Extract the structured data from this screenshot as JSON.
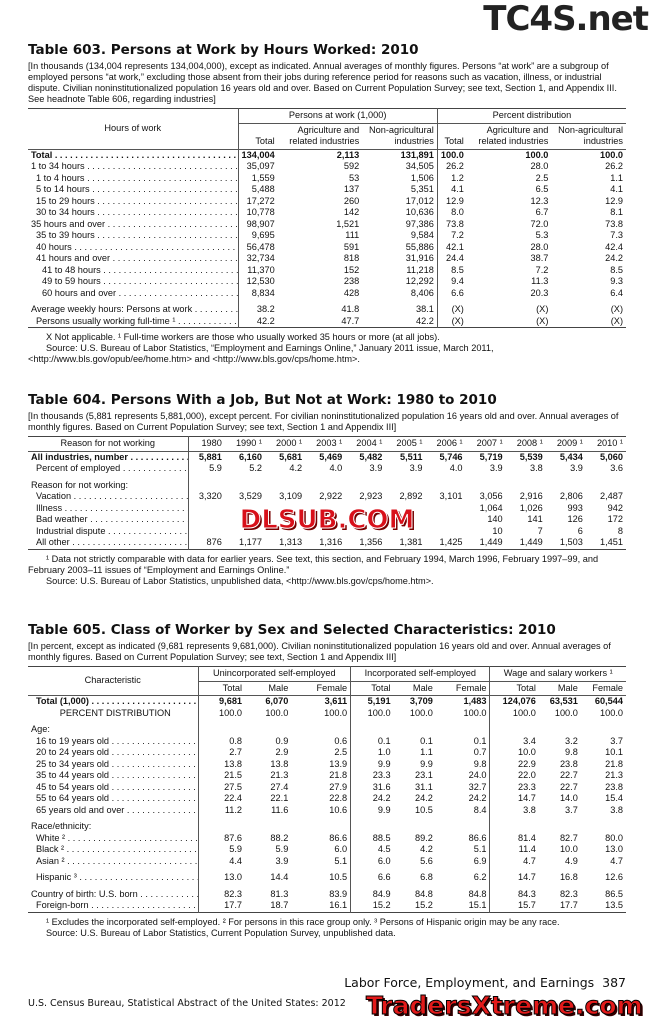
{
  "watermarks": {
    "top": "TC4S.net",
    "middle": "DLSUB.COM",
    "bottom": "TradersXtreme.com"
  },
  "t603": {
    "title": "Table 603. Persons at Work by Hours Worked: 2010",
    "headnote": "[In thousands (134,004 represents 134,004,000), except as indicated. Annual averages of monthly figures. Persons “at work” are a subgroup of employed persons “at work,” excluding those absent from their jobs during reference period for reasons such as vacation, illness, or industrial dispute. Civilian noninstitutionalized population 16 years old and over. Based on Current Population Survey; see text, Section 1, and Appendix III. See headnote Table 606, regarding industries]",
    "stub_header": "Hours of work",
    "groups": [
      "Persons at work (1,000)",
      "Percent distribution"
    ],
    "columns": [
      "Total",
      "Agriculture and related industries",
      "Non-agricultural industries",
      "Total",
      "Agriculture and related industries",
      "Non-agricultural industries"
    ],
    "rows": [
      {
        "label": "Total",
        "bold": true,
        "indent": 0,
        "values": [
          "134,004",
          "2,113",
          "131,891",
          "100.0",
          "100.0",
          "100.0"
        ]
      },
      {
        "label": "1 to 34 hours",
        "indent": 0,
        "values": [
          "35,097",
          "592",
          "34,505",
          "26.2",
          "28.0",
          "26.2"
        ]
      },
      {
        "label": "1 to 4 hours",
        "indent": 1,
        "values": [
          "1,559",
          "53",
          "1,506",
          "1.2",
          "2.5",
          "1.1"
        ]
      },
      {
        "label": "5 to 14 hours",
        "indent": 1,
        "values": [
          "5,488",
          "137",
          "5,351",
          "4.1",
          "6.5",
          "4.1"
        ]
      },
      {
        "label": "15 to 29 hours",
        "indent": 1,
        "values": [
          "17,272",
          "260",
          "17,012",
          "12.9",
          "12.3",
          "12.9"
        ]
      },
      {
        "label": "30 to 34 hours",
        "indent": 1,
        "values": [
          "10,778",
          "142",
          "10,636",
          "8.0",
          "6.7",
          "8.1"
        ]
      },
      {
        "label": "35 hours and over",
        "indent": 0,
        "values": [
          "98,907",
          "1,521",
          "97,386",
          "73.8",
          "72.0",
          "73.8"
        ]
      },
      {
        "label": "35 to 39 hours",
        "indent": 1,
        "values": [
          "9,695",
          "111",
          "9,584",
          "7.2",
          "5.3",
          "7.3"
        ]
      },
      {
        "label": "40 hours",
        "indent": 1,
        "values": [
          "56,478",
          "591",
          "55,886",
          "42.1",
          "28.0",
          "42.4"
        ]
      },
      {
        "label": "41 hours and over",
        "indent": 1,
        "values": [
          "32,734",
          "818",
          "31,916",
          "24.4",
          "38.7",
          "24.2"
        ]
      },
      {
        "label": "41 to 48 hours",
        "indent": 2,
        "values": [
          "11,370",
          "152",
          "11,218",
          "8.5",
          "7.2",
          "8.5"
        ]
      },
      {
        "label": "49 to 59 hours",
        "indent": 2,
        "values": [
          "12,530",
          "238",
          "12,292",
          "9.4",
          "11.3",
          "9.3"
        ]
      },
      {
        "label": "60 hours and over",
        "indent": 2,
        "values": [
          "8,834",
          "428",
          "8,406",
          "6.6",
          "20.3",
          "6.4"
        ]
      },
      {
        "label": "Average weekly hours: Persons at work",
        "indent": 0,
        "gap": true,
        "values": [
          "38.2",
          "41.8",
          "38.1",
          "(X)",
          "(X)",
          "(X)"
        ]
      },
      {
        "label": "Persons usually working full-time ¹",
        "indent": 1,
        "values": [
          "42.2",
          "47.7",
          "42.2",
          "(X)",
          "(X)",
          "(X)"
        ]
      }
    ],
    "notes": [
      "X Not applicable. ¹ Full-time workers are those who usually worked 35 hours or more (at all jobs).",
      "Source: U.S. Bureau of Labor Statistics, “Employment and Earnings Online,” January 2011 issue, March 2011, <http://www.bls.gov/opub/ee/home.htm> and <http://www.bls.gov/cps/home.htm>."
    ]
  },
  "t604": {
    "title": "Table 604. Persons With a Job, But Not at Work: 1980 to 2010",
    "headnote": "[In thousands (5,881 represents 5,881,000), except percent. For civilian noninstitutionalized population 16 years old and over. Annual averages of monthly figures. Based on Current Population Survey; see text, Section 1 and Appendix III]",
    "stub_header": "Reason for not working",
    "columns": [
      "1980",
      "1990 ¹",
      "2000 ¹",
      "2003 ¹",
      "2004 ¹",
      "2005 ¹",
      "2006 ¹",
      "2007 ¹",
      "2008 ¹",
      "2009 ¹",
      "2010 ¹"
    ],
    "rows": [
      {
        "label": "All industries, number",
        "bold": true,
        "indent": 0,
        "values": [
          "5,881",
          "6,160",
          "5,681",
          "5,469",
          "5,482",
          "5,511",
          "5,746",
          "5,719",
          "5,539",
          "5,434",
          "5,060"
        ]
      },
      {
        "label": "Percent of employed",
        "indent": 1,
        "values": [
          "5.9",
          "5.2",
          "4.2",
          "4.0",
          "3.9",
          "3.9",
          "4.0",
          "3.9",
          "3.8",
          "3.9",
          "3.6"
        ]
      },
      {
        "label": "Reason for not working:",
        "indent": 0,
        "gap": true,
        "nodots": true,
        "values": [
          "",
          "",
          "",
          "",
          "",
          "",
          "",
          "",
          "",
          "",
          ""
        ]
      },
      {
        "label": "Vacation",
        "indent": 1,
        "values": [
          "3,320",
          "3,529",
          "3,109",
          "2,922",
          "2,923",
          "2,892",
          "3,101",
          "3,056",
          "2,916",
          "2,806",
          "2,487"
        ]
      },
      {
        "label": "Illness",
        "indent": 1,
        "values": [
          "",
          "",
          "",
          "",
          "",
          "",
          "",
          "1,064",
          "1,026",
          "993",
          "942"
        ]
      },
      {
        "label": "Bad weather",
        "indent": 1,
        "values": [
          "",
          "",
          "",
          "",
          "",
          "",
          "",
          "140",
          "141",
          "126",
          "172"
        ]
      },
      {
        "label": "Industrial dispute",
        "indent": 1,
        "values": [
          "",
          "",
          "",
          "",
          "",
          "",
          "",
          "10",
          "7",
          "6",
          "8"
        ]
      },
      {
        "label": "All other",
        "indent": 1,
        "values": [
          "876",
          "1,177",
          "1,313",
          "1,316",
          "1,356",
          "1,381",
          "1,425",
          "1,449",
          "1,449",
          "1,503",
          "1,451"
        ]
      }
    ],
    "notes": [
      "¹ Data not strictly comparable with data for earlier years. See text, this section, and February 1994, March 1996, February 1997–99, and February 2003–11 issues of “Employment and Earnings Online.”",
      "Source: U.S. Bureau of Labor Statistics, unpublished data, <http://www.bls.gov/cps/home.htm>."
    ]
  },
  "t605": {
    "title": "Table 605. Class of Worker by Sex and Selected Characteristics: 2010",
    "headnote": "[In percent, except as indicated (9,681 represents 9,681,000). Civilian noninstitutionalized population 16 years old and over. Annual averages of monthly figures. Based on Current Population Survey; see text, Section 1 and Appendix III]",
    "stub_header": "Characteristic",
    "groups": [
      "Unincorporated self-employed",
      "Incorporated self-employed",
      "Wage and salary workers ¹"
    ],
    "columns": [
      "Total",
      "Male",
      "Female",
      "Total",
      "Male",
      "Female",
      "Total",
      "Male",
      "Female"
    ],
    "rows": [
      {
        "label": "Total (1,000)",
        "bold": true,
        "indent": 1,
        "values": [
          "9,681",
          "6,070",
          "3,611",
          "5,191",
          "3,709",
          "1,483",
          "124,076",
          "63,531",
          "60,544"
        ]
      },
      {
        "label": "PERCENT DISTRIBUTION",
        "indent": 1,
        "center": true,
        "nodots": true,
        "values": [
          "100.0",
          "100.0",
          "100.0",
          "100.0",
          "100.0",
          "100.0",
          "100.0",
          "100.0",
          "100.0"
        ]
      },
      {
        "label": "Age:",
        "indent": 0,
        "gap": true,
        "nodots": true,
        "values": [
          "",
          "",
          "",
          "",
          "",
          "",
          "",
          "",
          ""
        ]
      },
      {
        "label": "16 to 19 years old",
        "indent": 1,
        "values": [
          "0.8",
          "0.9",
          "0.6",
          "0.1",
          "0.1",
          "0.1",
          "3.4",
          "3.2",
          "3.7"
        ]
      },
      {
        "label": "20 to 24 years old",
        "indent": 1,
        "values": [
          "2.7",
          "2.9",
          "2.5",
          "1.0",
          "1.1",
          "0.7",
          "10.0",
          "9.8",
          "10.1"
        ]
      },
      {
        "label": "25 to 34 years old",
        "indent": 1,
        "values": [
          "13.8",
          "13.8",
          "13.9",
          "9.9",
          "9.9",
          "9.8",
          "22.9",
          "23.8",
          "21.8"
        ]
      },
      {
        "label": "35 to 44 years old",
        "indent": 1,
        "values": [
          "21.5",
          "21.3",
          "21.8",
          "23.3",
          "23.1",
          "24.0",
          "22.0",
          "22.7",
          "21.3"
        ]
      },
      {
        "label": "45 to 54 years old",
        "indent": 1,
        "values": [
          "27.5",
          "27.4",
          "27.9",
          "31.6",
          "31.1",
          "32.7",
          "23.3",
          "22.7",
          "23.8"
        ]
      },
      {
        "label": "55 to 64 years old",
        "indent": 1,
        "values": [
          "22.4",
          "22.1",
          "22.8",
          "24.2",
          "24.2",
          "24.2",
          "14.7",
          "14.0",
          "15.4"
        ]
      },
      {
        "label": "65 years old and over",
        "indent": 1,
        "values": [
          "11.2",
          "11.6",
          "10.6",
          "9.9",
          "10.5",
          "8.4",
          "3.8",
          "3.7",
          "3.8"
        ]
      },
      {
        "label": "Race/ethnicity:",
        "indent": 0,
        "gap": true,
        "nodots": true,
        "values": [
          "",
          "",
          "",
          "",
          "",
          "",
          "",
          "",
          ""
        ]
      },
      {
        "label": "White ²",
        "indent": 1,
        "values": [
          "87.6",
          "88.2",
          "86.6",
          "88.5",
          "89.2",
          "86.6",
          "81.4",
          "82.7",
          "80.0"
        ]
      },
      {
        "label": "Black ²",
        "indent": 1,
        "values": [
          "5.9",
          "5.9",
          "6.0",
          "4.5",
          "4.2",
          "5.1",
          "11.4",
          "10.0",
          "13.0"
        ]
      },
      {
        "label": "Asian ²",
        "indent": 1,
        "values": [
          "4.4",
          "3.9",
          "5.1",
          "6.0",
          "5.6",
          "6.9",
          "4.7",
          "4.9",
          "4.7"
        ]
      },
      {
        "label": "Hispanic ³",
        "indent": 1,
        "gap": true,
        "values": [
          "13.0",
          "14.4",
          "10.5",
          "6.6",
          "6.8",
          "6.2",
          "14.7",
          "16.8",
          "12.6"
        ]
      },
      {
        "label": "Country of birth: U.S. born",
        "indent": 0,
        "gap": true,
        "values": [
          "82.3",
          "81.3",
          "83.9",
          "84.9",
          "84.8",
          "84.8",
          "84.3",
          "82.3",
          "86.5"
        ]
      },
      {
        "label": "Foreign-born",
        "indent": 1,
        "values": [
          "17.7",
          "18.7",
          "16.1",
          "15.2",
          "15.2",
          "15.1",
          "15.7",
          "17.7",
          "13.5"
        ]
      }
    ],
    "notes": [
      "¹ Excludes the incorporated self-employed. ² For persons in this race group only. ³ Persons of Hispanic origin may be any race.",
      "Source: U.S. Bureau of Labor Statistics, Current Population Survey, unpublished data."
    ]
  },
  "footer": {
    "section": "Labor Force, Employment, and Earnings",
    "page": "387",
    "publisher": "U.S. Census Bureau, Statistical Abstract of the United States: 2012"
  }
}
